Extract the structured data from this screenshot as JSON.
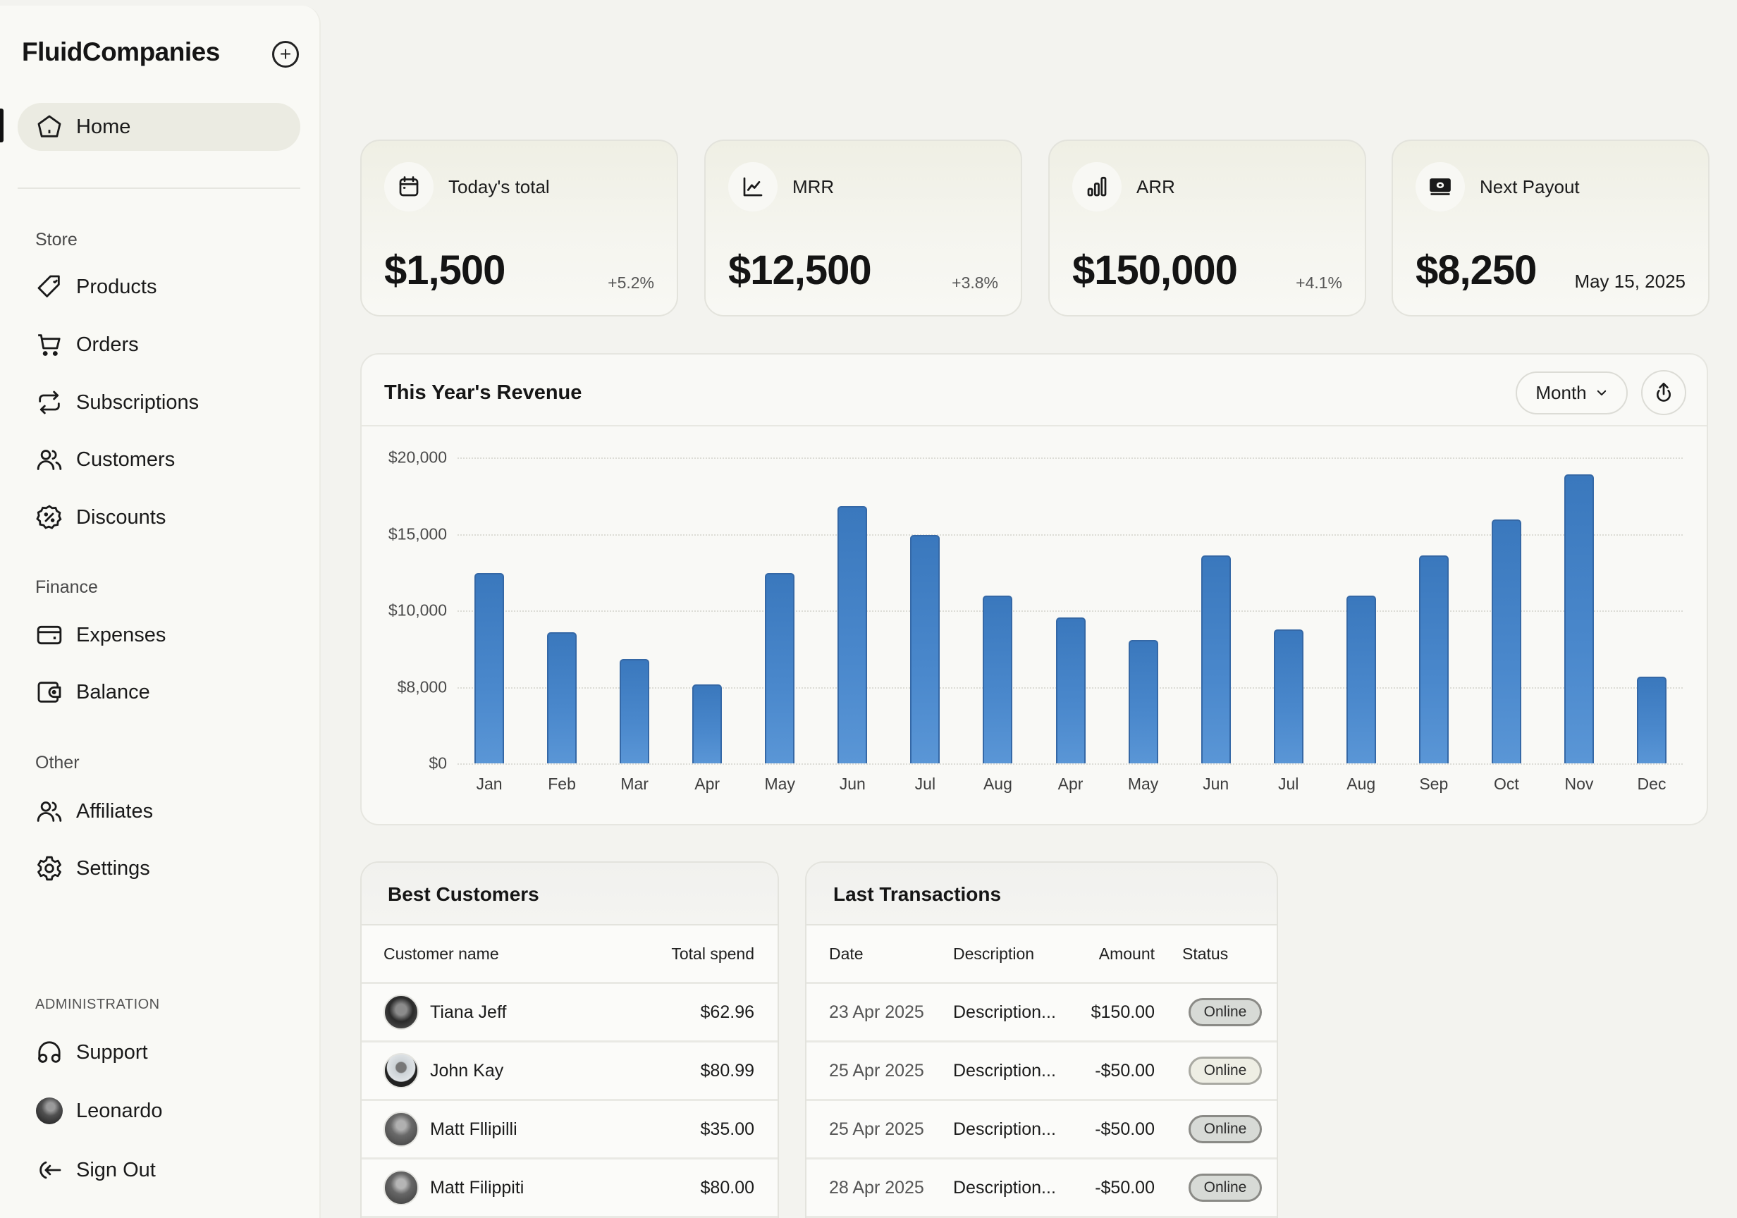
{
  "sidebar": {
    "brand": "FluidCompanies",
    "add_button": "+",
    "home": {
      "label": "Home",
      "icon": "home-icon",
      "active": true
    },
    "sections": [
      {
        "label": "Store",
        "items": [
          {
            "label": "Products",
            "icon": "tag-icon"
          },
          {
            "label": "Orders",
            "icon": "cart-icon"
          },
          {
            "label": "Subscriptions",
            "icon": "repeat-icon"
          },
          {
            "label": "Customers",
            "icon": "users-icon"
          },
          {
            "label": "Discounts",
            "icon": "discount-badge-icon"
          }
        ]
      },
      {
        "label": "Finance",
        "items": [
          {
            "label": "Expenses",
            "icon": "credit-card-icon"
          },
          {
            "label": "Balance",
            "icon": "wallet-icon"
          }
        ]
      },
      {
        "label": "Other",
        "items": [
          {
            "label": "Affiliates",
            "icon": "users-icon"
          },
          {
            "label": "Settings",
            "icon": "gear-icon"
          }
        ]
      },
      {
        "label": "ADMINISTRATION",
        "items": [
          {
            "label": "Support",
            "icon": "headphones-icon"
          },
          {
            "label": "Leonardo",
            "icon": "avatar"
          },
          {
            "label": "Sign Out",
            "icon": "sign-out-icon"
          }
        ]
      }
    ]
  },
  "stats": [
    {
      "label": "Today's total",
      "icon": "calendar-icon",
      "value": "$1,500",
      "delta": "+5.2%"
    },
    {
      "label": "MRR",
      "icon": "line-chart-icon",
      "value": "$12,500",
      "delta": "+3.8%"
    },
    {
      "label": "ARR",
      "icon": "bar-chart-icon",
      "value": "$150,000",
      "delta": "+4.1%"
    },
    {
      "label": "Next Payout",
      "icon": "banknote-icon",
      "value": "$8,250",
      "date": "May 15, 2025"
    }
  ],
  "revenue": {
    "title": "This Year's Revenue",
    "period_select": "Month",
    "export_icon": "upload-icon"
  },
  "chart_data": {
    "type": "bar",
    "title": "This Year's Revenue",
    "xlabel": "",
    "ylabel": "",
    "y_tick_labels": [
      "$0",
      "$8,000",
      "$10,000",
      "$15,000",
      "$20,000"
    ],
    "y_ticks_evenly_spaced": true,
    "ylim": [
      0,
      20000
    ],
    "grid": true,
    "legend": null,
    "bar_color": "#3f7dc3",
    "categories": [
      "Jan",
      "Feb",
      "Mar",
      "Apr",
      "May",
      "Jun",
      "Jul",
      "Aug",
      "Apr",
      "May",
      "Jun",
      "Jul",
      "Aug",
      "Sep",
      "Oct",
      "Nov",
      "Dec"
    ],
    "values": [
      12500,
      9400,
      8700,
      8100,
      12500,
      16800,
      15000,
      11000,
      9800,
      9200,
      13600,
      9500,
      11000,
      13600,
      16000,
      18900,
      8300
    ],
    "tick_positions": [
      2.49,
      1.71,
      1.36,
      1.03,
      2.49,
      3.36,
      2.99,
      2.19,
      1.91,
      1.61,
      2.72,
      1.75,
      2.19,
      2.72,
      3.19,
      3.78,
      1.13
    ]
  },
  "best_customers": {
    "title": "Best Customers",
    "columns": [
      "Customer name",
      "Total spend"
    ],
    "rows": [
      {
        "name": "Tiana Jeff",
        "spend": "$62.96"
      },
      {
        "name": "John Kay",
        "spend": "$80.99"
      },
      {
        "name": "Matt Fllipilli",
        "spend": "$35.00"
      },
      {
        "name": "Matt Filippiti",
        "spend": "$80.00"
      }
    ]
  },
  "last_transactions": {
    "title": "Last Transactions",
    "columns": [
      "Date",
      "Description",
      "Amount",
      "Status"
    ],
    "rows": [
      {
        "date": "23 Apr 2025",
        "description": "Description...",
        "amount": "$150.00",
        "status": "Online"
      },
      {
        "date": "25 Apr 2025",
        "description": "Description...",
        "amount": "-$50.00",
        "status": "Online"
      },
      {
        "date": "25 Apr 2025",
        "description": "Description...",
        "amount": "-$50.00",
        "status": "Online"
      },
      {
        "date": "28 Apr 2025",
        "description": "Description...",
        "amount": "-$50.00",
        "status": "Online"
      }
    ]
  }
}
